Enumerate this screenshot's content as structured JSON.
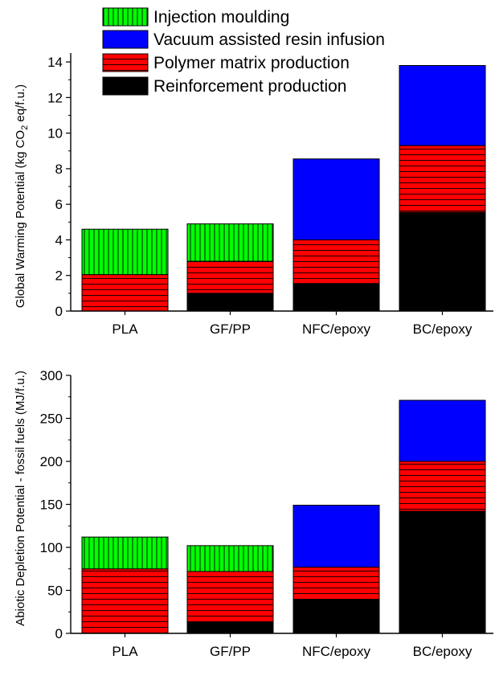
{
  "legend": {
    "entries": [
      {
        "key": "injection",
        "label": "Injection moulding",
        "color": "#00ff00",
        "pattern": "vertical-lines"
      },
      {
        "key": "vari",
        "label": "Vacuum assisted resin infusion",
        "color": "#0000ff",
        "pattern": "solid"
      },
      {
        "key": "polymer",
        "label": "Polymer matrix production",
        "color": "#ff0000",
        "pattern": "horizontal-lines"
      },
      {
        "key": "reinforcement",
        "label": "Reinforcement production",
        "color": "#000000",
        "pattern": "solid"
      }
    ]
  },
  "chart_data": [
    {
      "type": "bar",
      "stacked": true,
      "ylabel_main": "Global Warming Potential (kg CO",
      "ylabel_sub": "2",
      "ylabel_tail": " eq/f.u.)",
      "ylim": [
        0,
        14.5
      ],
      "yticks": [
        0,
        2,
        4,
        6,
        8,
        10,
        12,
        14
      ],
      "categories": [
        "PLA",
        "GF/PP",
        "NFC/epoxy",
        "BC/epoxy"
      ],
      "series": [
        {
          "name": "Reinforcement production",
          "key": "reinforcement",
          "values": [
            0,
            1.0,
            1.55,
            5.55
          ]
        },
        {
          "name": "Polymer matrix production",
          "key": "polymer",
          "values": [
            2.05,
            1.8,
            2.45,
            3.75
          ]
        },
        {
          "name": "Vacuum assisted resin infusion",
          "key": "vari",
          "values": [
            0,
            0,
            4.55,
            4.5
          ]
        },
        {
          "name": "Injection moulding",
          "key": "injection",
          "values": [
            2.55,
            2.1,
            0,
            0
          ]
        }
      ]
    },
    {
      "type": "bar",
      "stacked": true,
      "ylabel_main": "Abiotic Depletion Potential - fossil fuels (MJ/f.u.)",
      "ylabel_sub": "",
      "ylabel_tail": "",
      "ylim": [
        0,
        300
      ],
      "yticks": [
        0,
        50,
        100,
        150,
        200,
        250,
        300
      ],
      "categories": [
        "PLA",
        "GF/PP",
        "NFC/epoxy",
        "BC/epoxy"
      ],
      "series": [
        {
          "name": "Reinforcement production",
          "key": "reinforcement",
          "values": [
            0,
            13,
            39,
            142
          ]
        },
        {
          "name": "Polymer matrix production",
          "key": "polymer",
          "values": [
            75,
            59,
            38,
            58
          ]
        },
        {
          "name": "Vacuum assisted resin infusion",
          "key": "vari",
          "values": [
            0,
            0,
            72,
            71
          ]
        },
        {
          "name": "Injection moulding",
          "key": "injection",
          "values": [
            37,
            30,
            0,
            0
          ]
        }
      ]
    }
  ]
}
